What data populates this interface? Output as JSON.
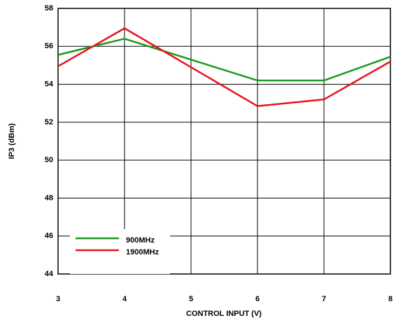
{
  "chart_data": {
    "type": "line",
    "x_label": "CONTROL INPUT (V)",
    "y_label": "IP3 (dBm)",
    "x": [
      3,
      4,
      5,
      6,
      7,
      8
    ],
    "series": [
      {
        "name": "900MHz",
        "color": "#1a9a1a",
        "values": [
          55.55,
          56.4,
          55.3,
          54.2,
          54.2,
          55.45
        ]
      },
      {
        "name": "1900MHz",
        "color": "#e8141c",
        "values": [
          54.95,
          56.95,
          54.9,
          52.85,
          53.2,
          55.2
        ]
      }
    ],
    "xlim": [
      3,
      8
    ],
    "xticks": [
      3,
      4,
      5,
      6,
      7,
      8
    ],
    "ylim": [
      44,
      58
    ],
    "yticks": [
      44,
      46,
      48,
      50,
      52,
      54,
      56,
      58
    ],
    "grid": true
  }
}
